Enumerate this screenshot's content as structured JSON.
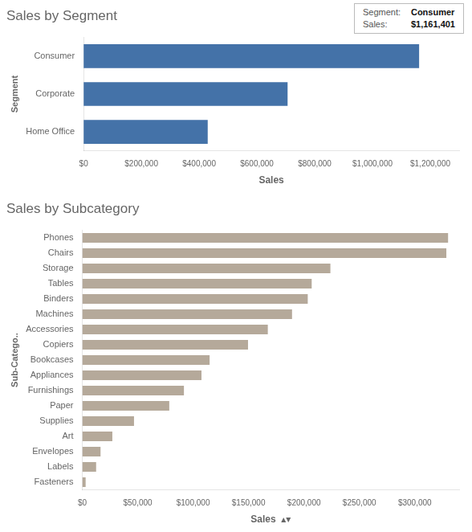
{
  "chart_data": [
    {
      "type": "bar",
      "orientation": "horizontal",
      "title": "Sales by Segment",
      "x_label": "Sales",
      "y_label": "Segment",
      "categories": [
        "Home Office",
        "Corporate",
        "Consumer"
      ],
      "values": [
        429653,
        706146,
        1161401
      ],
      "color": "#4472a8",
      "xlim": [
        0,
        1300000
      ],
      "xticks": [
        {
          "value": 0,
          "label": "$0"
        },
        {
          "value": 200000,
          "label": "$200,000"
        },
        {
          "value": 400000,
          "label": "$400,000"
        },
        {
          "value": 600000,
          "label": "$600,000"
        },
        {
          "value": 800000,
          "label": "$800,000"
        },
        {
          "value": 1000000,
          "label": "$1,000,000"
        },
        {
          "value": 1200000,
          "label": "$1,200,000"
        }
      ],
      "grid": false,
      "annotations": [
        {
          "label": "Segment:",
          "text": "Consumer"
        },
        {
          "label": "Sales:",
          "text": "$1,161,401"
        }
      ]
    },
    {
      "type": "bar",
      "orientation": "horizontal",
      "title": "Sales by Subcategory",
      "x_label": "Sales  ▴▾",
      "y_label": "Sub-Catego..",
      "categories": [
        "Fasteners",
        "Labels",
        "Envelopes",
        "Art",
        "Supplies",
        "Paper",
        "Furnishings",
        "Appliances",
        "Bookcases",
        "Copiers",
        "Accessories",
        "Machines",
        "Binders",
        "Tables",
        "Storage",
        "Chairs",
        "Phones"
      ],
      "values": [
        3024,
        12486,
        16476,
        27119,
        46674,
        78479,
        91705,
        107532,
        114880,
        149528,
        167380,
        189239,
        203413,
        206966,
        223844,
        328449,
        330007
      ],
      "color": "#b5a99a",
      "xlim": [
        0,
        340000
      ],
      "xticks": [
        {
          "value": 0,
          "label": "$0"
        },
        {
          "value": 50000,
          "label": "$50,000"
        },
        {
          "value": 100000,
          "label": "$100,000"
        },
        {
          "value": 150000,
          "label": "$150,000"
        },
        {
          "value": 200000,
          "label": "$200,000"
        },
        {
          "value": 250000,
          "label": "$250,000"
        },
        {
          "value": 300000,
          "label": "$300,000"
        }
      ],
      "grid": false
    }
  ]
}
